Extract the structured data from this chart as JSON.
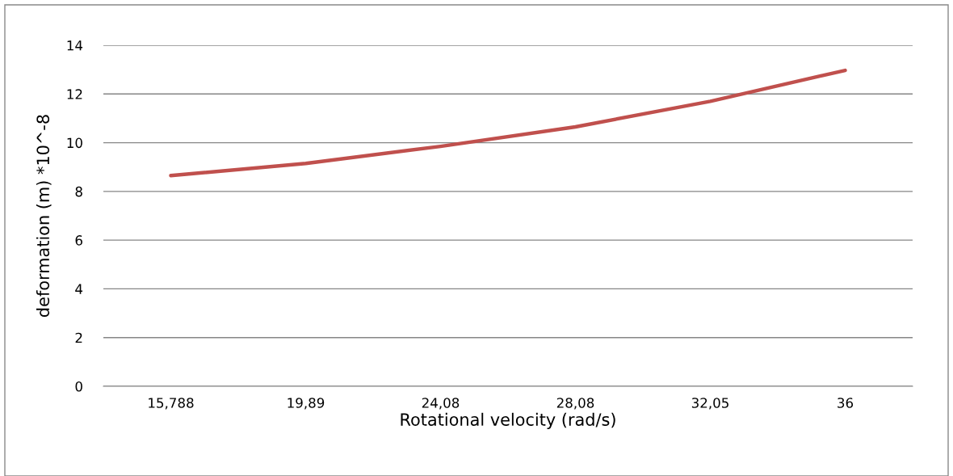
{
  "chart_data": {
    "type": "line",
    "xlabel": "Rotational velocity (rad/s)",
    "ylabel": "deformation (m) *10^-8",
    "categories": [
      "15,788",
      "19,89",
      "24,08",
      "28,08",
      "32,05",
      "36"
    ],
    "series": [
      {
        "color": "#c0504d",
        "values": [
          8.65,
          9.15,
          9.85,
          10.65,
          11.7,
          12.97
        ]
      }
    ],
    "ylim": [
      0,
      14
    ],
    "yticks": [
      0,
      2,
      4,
      6,
      8,
      10,
      12,
      14
    ],
    "grid": "y",
    "legend": false,
    "marker": "none",
    "line_style": "solid"
  }
}
